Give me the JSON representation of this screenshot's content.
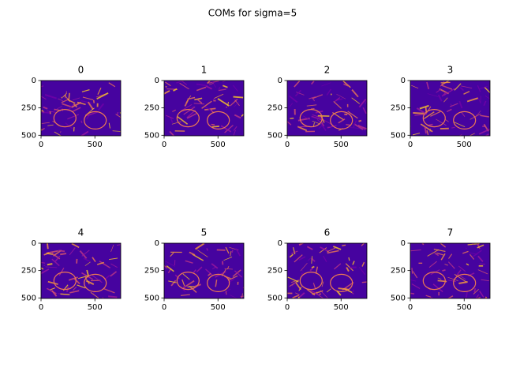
{
  "title": "COMs for sigma=5",
  "chart_data": [
    {
      "type": "image",
      "title": "0",
      "colormap": "plasma",
      "xlim": [
        0,
        740
      ],
      "ylim": [
        505,
        0
      ],
      "xticks": [
        0,
        500
      ],
      "yticks": [
        0,
        250,
        500
      ]
    },
    {
      "type": "image",
      "title": "1",
      "colormap": "plasma",
      "xlim": [
        0,
        740
      ],
      "ylim": [
        505,
        0
      ],
      "xticks": [
        0,
        500
      ],
      "yticks": [
        0,
        250,
        500
      ]
    },
    {
      "type": "image",
      "title": "2",
      "colormap": "plasma",
      "xlim": [
        0,
        740
      ],
      "ylim": [
        505,
        0
      ],
      "xticks": [
        0,
        500
      ],
      "yticks": [
        0,
        250,
        500
      ]
    },
    {
      "type": "image",
      "title": "3",
      "colormap": "plasma",
      "xlim": [
        0,
        740
      ],
      "ylim": [
        505,
        0
      ],
      "xticks": [
        0,
        500
      ],
      "yticks": [
        0,
        250,
        500
      ]
    },
    {
      "type": "image",
      "title": "4",
      "colormap": "plasma",
      "xlim": [
        0,
        740
      ],
      "ylim": [
        505,
        0
      ],
      "xticks": [
        0,
        500
      ],
      "yticks": [
        0,
        250,
        500
      ]
    },
    {
      "type": "image",
      "title": "5",
      "colormap": "plasma",
      "xlim": [
        0,
        740
      ],
      "ylim": [
        505,
        0
      ],
      "xticks": [
        0,
        500
      ],
      "yticks": [
        0,
        250,
        500
      ]
    },
    {
      "type": "image",
      "title": "6",
      "colormap": "plasma",
      "xlim": [
        0,
        740
      ],
      "ylim": [
        505,
        0
      ],
      "xticks": [
        0,
        500
      ],
      "yticks": [
        0,
        250,
        500
      ]
    },
    {
      "type": "image",
      "title": "7",
      "colormap": "plasma",
      "xlim": [
        0,
        740
      ],
      "ylim": [
        505,
        0
      ],
      "xticks": [
        0,
        500
      ],
      "yticks": [
        0,
        250,
        500
      ]
    }
  ]
}
